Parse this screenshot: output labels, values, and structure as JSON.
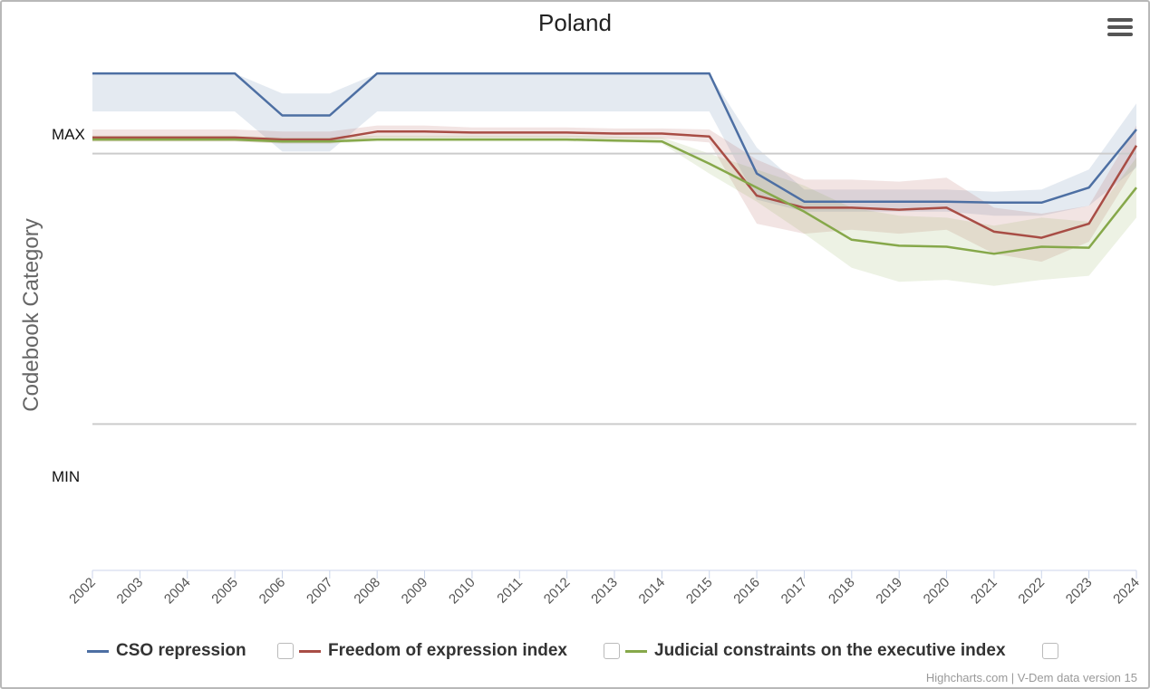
{
  "chart_data": {
    "type": "line",
    "title": "Poland",
    "ylabel": "Codebook Category",
    "y_ticks": [
      "MAX",
      "MIN"
    ],
    "x": [
      "2002",
      "2003",
      "2004",
      "2005",
      "2006",
      "2007",
      "2008",
      "2009",
      "2010",
      "2011",
      "2012",
      "2013",
      "2014",
      "2015",
      "2016",
      "2017",
      "2018",
      "2019",
      "2020",
      "2021",
      "2022",
      "2023",
      "2024"
    ],
    "ylim": [
      -1.48,
      1.05
    ],
    "reference_lines": [
      0.6,
      -0.75
    ],
    "grid": false,
    "legend_position": "bottom",
    "series": [
      {
        "name": "CSO repression",
        "color": "#4d6fa3",
        "values": [
          1.0,
          1.0,
          1.0,
          1.0,
          0.79,
          0.79,
          1.0,
          1.0,
          1.0,
          1.0,
          1.0,
          1.0,
          1.0,
          1.0,
          0.5,
          0.36,
          0.36,
          0.36,
          0.36,
          0.355,
          0.355,
          0.43,
          0.72
        ],
        "lower": [
          0.81,
          0.81,
          0.81,
          0.81,
          0.61,
          0.61,
          0.81,
          0.81,
          0.81,
          0.81,
          0.81,
          0.81,
          0.81,
          0.81,
          0.37,
          0.31,
          0.31,
          0.31,
          0.31,
          0.29,
          0.29,
          0.34,
          0.53
        ],
        "upper": [
          1.0,
          1.0,
          1.0,
          1.0,
          0.9,
          0.9,
          1.0,
          1.0,
          1.0,
          1.0,
          1.0,
          1.0,
          1.0,
          1.0,
          0.63,
          0.42,
          0.42,
          0.42,
          0.42,
          0.41,
          0.42,
          0.52,
          0.85
        ]
      },
      {
        "name": "Freedom of expression index",
        "color": "#a84d45",
        "values": [
          0.68,
          0.68,
          0.68,
          0.68,
          0.67,
          0.67,
          0.71,
          0.71,
          0.705,
          0.705,
          0.705,
          0.7,
          0.7,
          0.685,
          0.39,
          0.33,
          0.33,
          0.32,
          0.33,
          0.21,
          0.18,
          0.25,
          0.64
        ],
        "lower": [
          0.66,
          0.66,
          0.66,
          0.66,
          0.65,
          0.65,
          0.68,
          0.68,
          0.68,
          0.68,
          0.68,
          0.675,
          0.675,
          0.655,
          0.25,
          0.2,
          0.22,
          0.2,
          0.22,
          0.1,
          0.06,
          0.16,
          0.54
        ],
        "upper": [
          0.72,
          0.72,
          0.72,
          0.72,
          0.71,
          0.71,
          0.74,
          0.74,
          0.73,
          0.73,
          0.73,
          0.725,
          0.725,
          0.72,
          0.57,
          0.47,
          0.47,
          0.46,
          0.48,
          0.33,
          0.3,
          0.34,
          0.74
        ]
      },
      {
        "name": "Judicial constraints on the executive index",
        "color": "#86a84a",
        "values": [
          0.67,
          0.67,
          0.67,
          0.67,
          0.66,
          0.66,
          0.67,
          0.67,
          0.67,
          0.67,
          0.67,
          0.665,
          0.66,
          0.55,
          0.43,
          0.31,
          0.17,
          0.14,
          0.135,
          0.1,
          0.135,
          0.13,
          0.43
        ],
        "lower": [
          0.66,
          0.66,
          0.66,
          0.66,
          0.65,
          0.65,
          0.66,
          0.66,
          0.66,
          0.66,
          0.66,
          0.655,
          0.65,
          0.5,
          0.36,
          0.2,
          0.03,
          -0.04,
          -0.03,
          -0.06,
          -0.03,
          -0.01,
          0.28
        ],
        "upper": [
          0.69,
          0.69,
          0.69,
          0.69,
          0.68,
          0.68,
          0.69,
          0.69,
          0.69,
          0.69,
          0.69,
          0.685,
          0.68,
          0.6,
          0.52,
          0.44,
          0.33,
          0.29,
          0.28,
          0.24,
          0.28,
          0.26,
          0.58
        ]
      }
    ]
  },
  "menu_icon": "hamburger-menu-icon",
  "legend_checkbox_icon": "checkbox-icon",
  "credits": "Highcharts.com | V-Dem data version 15"
}
